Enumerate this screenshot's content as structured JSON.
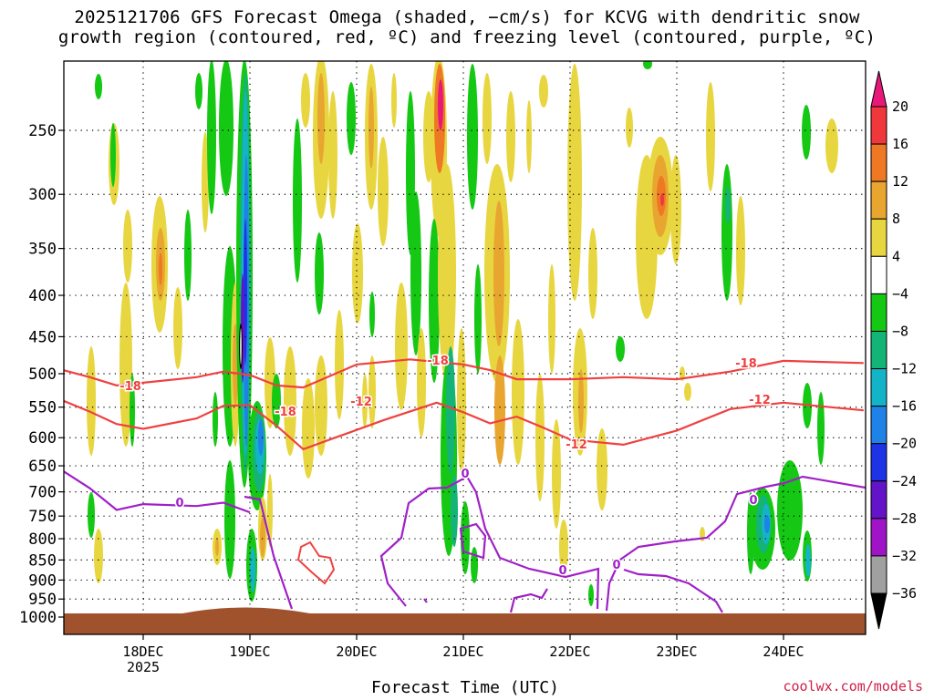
{
  "title": {
    "line1": "2025121706 GFS Forecast Omega (shaded, −cm/s) for KCVG with dendritic snow",
    "line2": "growth region (contoured, red, ºC) and freezing level (contoured, purple, ºC)"
  },
  "credit": "coolwx.com/models",
  "chart_data": {
    "type": "heatmap",
    "xlabel": "Forecast Time (UTC)",
    "ylabel": "",
    "x_axis": {
      "range": [
        "2025-12-17 06",
        "2025-12-24 18"
      ],
      "ticks": [
        {
          "label": "18DEC",
          "sublabel": "2025",
          "time": "2025-12-18 00"
        },
        {
          "label": "19DEC",
          "time": "2025-12-19 00"
        },
        {
          "label": "20DEC",
          "time": "2025-12-20 00"
        },
        {
          "label": "21DEC",
          "time": "2025-12-21 00"
        },
        {
          "label": "22DEC",
          "time": "2025-12-22 00"
        },
        {
          "label": "23DEC",
          "time": "2025-12-23 00"
        },
        {
          "label": "24DEC",
          "time": "2025-12-24 00"
        }
      ]
    },
    "y_axis": {
      "units": "hPa",
      "inverted": true,
      "range": [
        1000,
        200
      ],
      "ticks": [
        250,
        300,
        350,
        400,
        450,
        500,
        550,
        600,
        650,
        700,
        750,
        800,
        850,
        900,
        950,
        1000
      ]
    },
    "grid": true,
    "colorbar": {
      "levels": [
        "20",
        "16",
        "12",
        "8",
        "4",
        "−4",
        "−8",
        "−12",
        "−16",
        "−20",
        "−24",
        "−28",
        "−32",
        "−36"
      ],
      "colors": [
        "#e8187a",
        "#f0383c",
        "#ee7824",
        "#e8a630",
        "#e8d640",
        "#ffffff",
        "#14c814",
        "#14b478",
        "#14b4c8",
        "#1e82e6",
        "#1e32e6",
        "#6414c8",
        "#a014c8",
        "#a0a0a0",
        "#000000"
      ],
      "placement": "right"
    },
    "contours": [
      {
        "name": "-18",
        "color": "#f04040",
        "labels": [
          "-18",
          "-18",
          "-18",
          "-18"
        ],
        "points": [
          [
            "2025-12-17 06",
            495
          ],
          [
            "2025-12-17 12",
            505
          ],
          [
            "2025-12-17 18",
            517
          ],
          [
            "2025-12-18 00",
            513
          ],
          [
            "2025-12-18 12",
            505
          ],
          [
            "2025-12-18 18",
            497
          ],
          [
            "2025-12-19 00",
            502
          ],
          [
            "2025-12-19 06",
            517
          ],
          [
            "2025-12-19 12",
            520
          ],
          [
            "2025-12-20 00",
            487
          ],
          [
            "2025-12-20 12",
            480
          ],
          [
            "2025-12-21 00",
            487
          ],
          [
            "2025-12-21 06",
            495
          ],
          [
            "2025-12-21 12",
            508
          ],
          [
            "2025-12-22 00",
            508
          ],
          [
            "2025-12-22 12",
            505
          ],
          [
            "2025-12-23 00",
            508
          ],
          [
            "2025-12-23 12",
            497
          ],
          [
            "2025-12-24 00",
            482
          ],
          [
            "2025-12-24 18",
            485
          ]
        ]
      },
      {
        "name": "-12",
        "color": "#f04040",
        "labels": [
          "-12",
          "-12",
          "-12"
        ],
        "points": [
          [
            "2025-12-17 06",
            540
          ],
          [
            "2025-12-17 12",
            557
          ],
          [
            "2025-12-17 18",
            577
          ],
          [
            "2025-12-18 00",
            585
          ],
          [
            "2025-12-18 12",
            568
          ],
          [
            "2025-12-18 18",
            548
          ],
          [
            "2025-12-19 00",
            547
          ],
          [
            "2025-12-19 06",
            580
          ],
          [
            "2025-12-19 12",
            620
          ],
          [
            "2025-12-19 18",
            603
          ],
          [
            "2025-12-20 06",
            571
          ],
          [
            "2025-12-20 18",
            543
          ],
          [
            "2025-12-21 00",
            558
          ],
          [
            "2025-12-21 06",
            576
          ],
          [
            "2025-12-21 12",
            565
          ],
          [
            "2025-12-21 18",
            583
          ],
          [
            "2025-12-22 00",
            603
          ],
          [
            "2025-12-22 12",
            612
          ],
          [
            "2025-12-23 00",
            588
          ],
          [
            "2025-12-23 12",
            553
          ],
          [
            "2025-12-24 00",
            543
          ],
          [
            "2025-12-24 18",
            555
          ]
        ]
      },
      {
        "name": "0",
        "color": "#a020c8",
        "labels": [
          "0",
          "0",
          "0",
          "0",
          "0"
        ],
        "points": [
          [
            "2025-12-17 06",
            660
          ],
          [
            "2025-12-17 12",
            693
          ],
          [
            "2025-12-17 18",
            737
          ],
          [
            "2025-12-18 00",
            725
          ],
          [
            "2025-12-18 12",
            729
          ],
          [
            "2025-12-18 18",
            722
          ],
          [
            "2025-12-19 00",
            742
          ]
        ]
      }
    ],
    "ground_level_hPa": 975
  }
}
